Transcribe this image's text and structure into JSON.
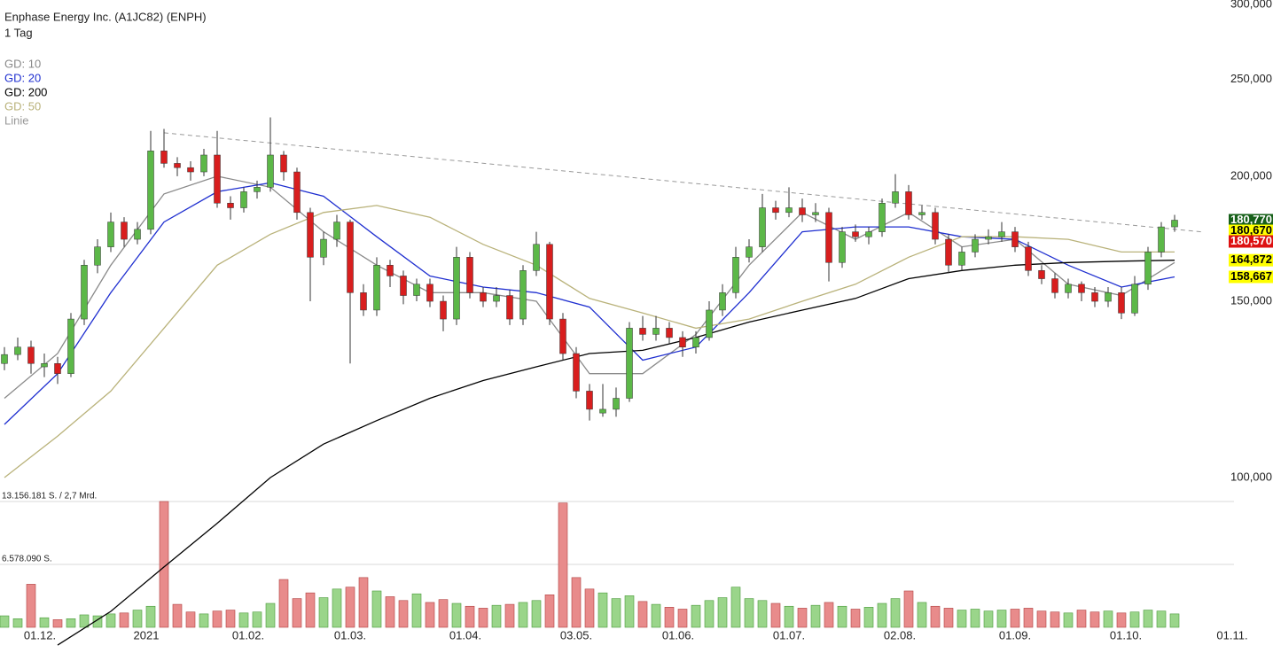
{
  "chart_data": {
    "type": "candlestick",
    "title": "Enphase Energy Inc. (A1JC82) (ENPH)",
    "subtitle": "1 Tag",
    "log_scale": true,
    "up_color": "#5cb848",
    "down_color": "#d81e1e",
    "volume_up_color": "#9ad58a",
    "volume_down_color": "#e88b8b",
    "x": [
      0,
      3,
      6,
      9,
      12,
      15,
      18,
      21,
      24,
      27,
      30,
      33,
      36,
      39,
      42,
      45,
      48,
      51,
      54,
      57,
      60,
      63,
      66,
      69,
      72,
      75,
      78,
      81,
      84,
      87,
      90,
      93,
      96,
      99,
      102,
      105,
      108,
      111,
      114,
      117,
      120,
      123,
      126,
      129,
      132,
      135,
      138,
      141,
      144,
      147,
      150,
      153,
      156,
      159,
      162,
      165,
      168,
      171,
      174,
      177,
      180,
      183,
      186,
      189,
      192,
      195,
      198,
      201,
      204,
      207,
      210,
      213,
      216,
      219,
      222,
      225,
      228,
      231,
      234,
      237,
      240,
      243,
      246,
      249,
      252,
      255,
      258,
      261,
      264
    ],
    "open": [
      130000,
      132700,
      135000,
      129000,
      130000,
      127000,
      144000,
      163000,
      170000,
      180000,
      173000,
      177000,
      212000,
      206000,
      204000,
      202000,
      210000,
      188000,
      186000,
      193000,
      195000,
      210000,
      202000,
      184000,
      166000,
      173000,
      180000,
      153000,
      147000,
      163000,
      159000,
      152000,
      156000,
      150000,
      144000,
      166000,
      153000,
      150000,
      152000,
      144000,
      161000,
      171000,
      144000,
      133000,
      122000,
      116000,
      117000,
      120000,
      141000,
      139000,
      141000,
      138000,
      135000,
      138000,
      147000,
      153000,
      166000,
      170000,
      186000,
      184000,
      186000,
      183000,
      184000,
      164000,
      176000,
      174000,
      176000,
      188000,
      193000,
      183000,
      184000,
      173000,
      163000,
      168000,
      173000,
      174000,
      176000,
      170000,
      161000,
      158000,
      153000,
      156000,
      153000,
      150000,
      153000,
      146000,
      156000,
      168000,
      178000
    ],
    "high": [
      135000,
      138000,
      137000,
      133000,
      132000,
      146000,
      165000,
      173000,
      184000,
      182000,
      180000,
      222000,
      223000,
      209000,
      207000,
      213000,
      222000,
      191000,
      195000,
      198000,
      229000,
      212000,
      204000,
      186000,
      176000,
      183000,
      181000,
      156000,
      166000,
      165000,
      161000,
      158000,
      158000,
      152000,
      170000,
      168000,
      155000,
      155000,
      154000,
      163000,
      176000,
      172000,
      146000,
      135000,
      124000,
      124000,
      123000,
      143000,
      145000,
      145000,
      143000,
      140000,
      140000,
      150000,
      156000,
      170000,
      173000,
      192000,
      189000,
      195000,
      190000,
      188000,
      186000,
      178000,
      179000,
      178000,
      190000,
      201000,
      196000,
      187000,
      186000,
      175000,
      170000,
      175000,
      177000,
      180000,
      178000,
      172000,
      163000,
      160000,
      158000,
      157000,
      155000,
      155000,
      155000,
      159000,
      170000,
      180000,
      183000
    ],
    "low": [
      128000,
      131000,
      127000,
      126000,
      124000,
      126000,
      142000,
      160000,
      168000,
      170000,
      171000,
      175000,
      204000,
      200000,
      198000,
      200000,
      186000,
      181000,
      184000,
      190000,
      193000,
      198000,
      181000,
      150000,
      163000,
      170000,
      130000,
      145000,
      145000,
      155000,
      149000,
      150000,
      148000,
      140000,
      142000,
      151000,
      148000,
      148000,
      142000,
      142000,
      159000,
      142000,
      131000,
      120000,
      114000,
      115000,
      115000,
      119000,
      137000,
      137000,
      136000,
      132000,
      133000,
      137000,
      145000,
      151000,
      164000,
      168000,
      181000,
      182000,
      180000,
      180000,
      157000,
      162000,
      172000,
      171000,
      174000,
      186000,
      181000,
      181000,
      171000,
      160000,
      161000,
      166000,
      171000,
      172000,
      168000,
      159000,
      156000,
      151000,
      151000,
      150000,
      148000,
      148000,
      144000,
      145000,
      154000,
      166000,
      176000
    ],
    "close": [
      132700,
      135000,
      130000,
      130000,
      127000,
      144000,
      163000,
      170000,
      180000,
      173000,
      177000,
      212000,
      206000,
      204000,
      202000,
      210000,
      188000,
      186000,
      193000,
      195000,
      210000,
      202000,
      184000,
      166000,
      173000,
      180000,
      153000,
      147000,
      163000,
      159000,
      152000,
      156000,
      150000,
      144000,
      166000,
      153000,
      150000,
      152000,
      144000,
      161000,
      171000,
      144000,
      133000,
      122000,
      117000,
      117000,
      120000,
      141000,
      139000,
      141000,
      138000,
      135000,
      138000,
      147000,
      153000,
      166000,
      170000,
      186000,
      184000,
      186000,
      183000,
      184000,
      164000,
      176000,
      174000,
      176000,
      188000,
      193000,
      183000,
      184000,
      173000,
      163000,
      168000,
      173000,
      174000,
      176000,
      170000,
      161000,
      158000,
      153000,
      156000,
      153000,
      150000,
      153000,
      146000,
      156000,
      168000,
      178000,
      180770
    ],
    "volume": [
      1200000,
      900000,
      4500000,
      1000000,
      800000,
      900000,
      1300000,
      1200000,
      1400000,
      1500000,
      1800000,
      2200000,
      13156181,
      2400000,
      1600000,
      1400000,
      1700000,
      1800000,
      1500000,
      1600000,
      2500000,
      5000000,
      3000000,
      3600000,
      3100000,
      4000000,
      4200000,
      5200000,
      3800000,
      3200000,
      2800000,
      3500000,
      2600000,
      2900000,
      2500000,
      2200000,
      2000000,
      2300000,
      2400000,
      2600000,
      2800000,
      3400000,
      13000000,
      5200000,
      4000000,
      3600000,
      3000000,
      3300000,
      2700000,
      2400000,
      2100000,
      1900000,
      2300000,
      2800000,
      3100000,
      4200000,
      3000000,
      2800000,
      2500000,
      2200000,
      2000000,
      2300000,
      2600000,
      2200000,
      1900000,
      2100000,
      2500000,
      3000000,
      3800000,
      2600000,
      2200000,
      2000000,
      1800000,
      1900000,
      1700000,
      1800000,
      1900000,
      2000000,
      1700000,
      1600000,
      1500000,
      1800000,
      1600000,
      1700000,
      1500000,
      1600000,
      1800000,
      1700000,
      1400000
    ],
    "overlays": [
      {
        "name": "GD: 10",
        "color": "#8a8a8a",
        "x": [
          0,
          12,
          24,
          36,
          48,
          60,
          72,
          84,
          96,
          108,
          120,
          132,
          144,
          156,
          168,
          180,
          192,
          204,
          216,
          228,
          240,
          252,
          264
        ],
        "values": [
          120000,
          133000,
          163000,
          192000,
          200000,
          195000,
          176000,
          163000,
          153000,
          153000,
          150000,
          127000,
          127000,
          139000,
          163000,
          184000,
          173000,
          184000,
          170000,
          173000,
          156000,
          152000,
          164000
        ]
      },
      {
        "name": "GD: 20",
        "color": "#1f2fd0",
        "x": [
          0,
          12,
          24,
          36,
          48,
          60,
          72,
          84,
          96,
          108,
          120,
          132,
          144,
          156,
          168,
          180,
          192,
          204,
          216,
          228,
          240,
          252,
          264
        ],
        "values": [
          113000,
          127000,
          153000,
          180000,
          193000,
          197000,
          191000,
          174000,
          159000,
          155000,
          153000,
          148000,
          131000,
          135000,
          153000,
          176000,
          178000,
          178000,
          174000,
          173000,
          163000,
          155000,
          158667
        ]
      },
      {
        "name": "GD: 200",
        "color": "#000000",
        "x": [
          0,
          12,
          24,
          36,
          48,
          60,
          72,
          84,
          96,
          108,
          120,
          132,
          144,
          156,
          168,
          180,
          192,
          204,
          216,
          228,
          240,
          252,
          264
        ],
        "values": [
          null,
          68000,
          73500,
          81400,
          90000,
          100000,
          108000,
          114000,
          120000,
          125000,
          129000,
          133000,
          134000,
          138000,
          143000,
          147000,
          151000,
          158000,
          161000,
          163000,
          164000,
          164500,
          164872
        ]
      },
      {
        "name": "GD: 50",
        "color": "#b9b27a",
        "x": [
          0,
          12,
          24,
          36,
          48,
          60,
          72,
          84,
          96,
          108,
          120,
          132,
          144,
          156,
          168,
          180,
          192,
          204,
          216,
          228,
          240,
          252,
          264
        ],
        "values": [
          100000,
          110000,
          122000,
          141000,
          163000,
          175000,
          184000,
          187000,
          182000,
          171000,
          163000,
          151000,
          146000,
          141000,
          144000,
          150000,
          156000,
          166000,
          174000,
          174000,
          173000,
          168000,
          168000
        ]
      },
      {
        "name": "Linie",
        "color": "#999999",
        "dashed": true,
        "x": [
          36,
          270
        ],
        "values": [
          221000,
          176000
        ]
      }
    ],
    "price_labels": [
      {
        "value": 180770,
        "label": "180,770",
        "color": "#17601a"
      },
      {
        "value": 180670,
        "label": "180,670",
        "color": "#ffff00"
      },
      {
        "value": 180570,
        "label": "180,570",
        "color": "#dd1111"
      },
      {
        "value": 164872,
        "label": "164,872",
        "color": "#ffff00"
      },
      {
        "value": 158667,
        "label": "158,667",
        "color": "#ffff00"
      }
    ],
    "xlim": [
      -1,
      285
    ],
    "xticks": [
      {
        "value": 8,
        "label": "01.12."
      },
      {
        "value": 32,
        "label": "2021"
      },
      {
        "value": 55,
        "label": "01.02."
      },
      {
        "value": 78,
        "label": "01.03."
      },
      {
        "value": 104,
        "label": "01.04."
      },
      {
        "value": 129,
        "label": "03.05."
      },
      {
        "value": 152,
        "label": "01.06."
      },
      {
        "value": 177,
        "label": "01.07."
      },
      {
        "value": 202,
        "label": "02.08."
      },
      {
        "value": 228,
        "label": "01.09."
      },
      {
        "value": 253,
        "label": "01.10."
      },
      {
        "value": 277,
        "label": "01.11."
      }
    ],
    "ylim": [
      95800,
      300000
    ],
    "yticks": [
      {
        "value": 100000,
        "label": "100,000"
      },
      {
        "value": 150000,
        "label": "150,000"
      },
      {
        "value": 200000,
        "label": "200,000"
      },
      {
        "value": 250000,
        "label": "250,000"
      },
      {
        "value": 300000,
        "label": "300,000"
      }
    ],
    "volume_ylim": [
      0,
      13156181
    ],
    "volume_yticks": [
      {
        "value": 6578090,
        "label": "6.578.090 S."
      },
      {
        "value": 13156181,
        "label": "13.156.181 S. / 2,7 Mrd."
      }
    ]
  }
}
